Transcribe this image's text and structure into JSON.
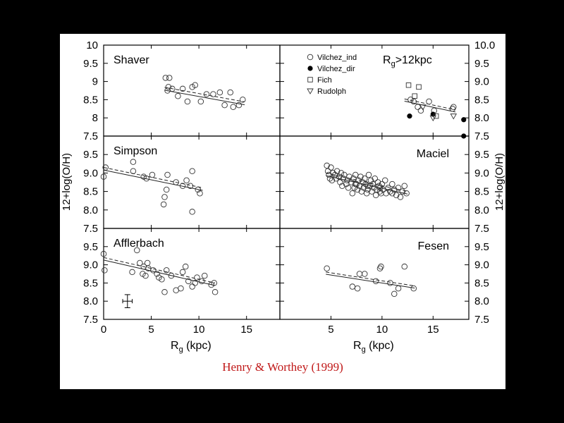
{
  "figure": {
    "citation": "Henry & Worthey (1999)",
    "citation_color": "#c01818",
    "background": "#000000",
    "panel_background": "#ffffff"
  },
  "chart_data": [
    {
      "id": "shaver",
      "type": "scatter",
      "title": "Shaver",
      "xlim": [
        0,
        18.5
      ],
      "ylim": [
        7.5,
        10
      ],
      "ytick_labels": [
        "10",
        "9.5",
        "9",
        "8.5",
        "8",
        "7.5"
      ],
      "ylabel": "12+log(O/H)",
      "xlabel": "",
      "points": [
        [
          6.5,
          9.1
        ],
        [
          6.9,
          9.1
        ],
        [
          6.7,
          8.75
        ],
        [
          6.8,
          8.85
        ],
        [
          7.2,
          8.8
        ],
        [
          7.8,
          8.6
        ],
        [
          8.3,
          8.8
        ],
        [
          8.8,
          8.45
        ],
        [
          9.3,
          8.85
        ],
        [
          9.6,
          8.9
        ],
        [
          10.2,
          8.45
        ],
        [
          10.8,
          8.65
        ],
        [
          11.5,
          8.65
        ],
        [
          12.2,
          8.7
        ],
        [
          12.7,
          8.35
        ],
        [
          13.3,
          8.7
        ],
        [
          13.6,
          8.3
        ],
        [
          14.2,
          8.35
        ],
        [
          14.6,
          8.5
        ]
      ],
      "fit_lines": [
        [
          [
            6.4,
            8.84
          ],
          [
            14.8,
            8.44
          ]
        ],
        [
          [
            6.4,
            8.76
          ],
          [
            14.8,
            8.36
          ]
        ]
      ]
    },
    {
      "id": "simpson",
      "type": "scatter",
      "title": "Simpson",
      "xlim": [
        0,
        18.5
      ],
      "ylim": [
        7.5,
        10
      ],
      "ytick_labels": [
        "9.5",
        "9.0",
        "8.5",
        "8.0",
        "7.5"
      ],
      "ylabel": "",
      "xlabel": "",
      "points": [
        [
          0,
          8.9
        ],
        [
          0.2,
          9.15
        ],
        [
          3.1,
          9.3
        ],
        [
          3.1,
          9.05
        ],
        [
          4.2,
          8.9
        ],
        [
          4.5,
          8.85
        ],
        [
          5.1,
          8.95
        ],
        [
          6.3,
          8.15
        ],
        [
          6.4,
          8.35
        ],
        [
          6.6,
          8.55
        ],
        [
          6.7,
          8.95
        ],
        [
          7.6,
          8.75
        ],
        [
          8.3,
          8.65
        ],
        [
          8.7,
          8.8
        ],
        [
          9.1,
          8.65
        ],
        [
          9.3,
          9.05
        ],
        [
          9.9,
          8.55
        ],
        [
          10.1,
          8.45
        ],
        [
          9.3,
          7.95
        ]
      ],
      "fit_lines": [
        [
          [
            0,
            9.15
          ],
          [
            10.4,
            8.6
          ]
        ],
        [
          [
            0,
            9.08
          ],
          [
            10.4,
            8.53
          ]
        ]
      ]
    },
    {
      "id": "afflerbach",
      "type": "scatter",
      "title": "Afflerbach",
      "xlim": [
        0,
        18.5
      ],
      "ylim": [
        7.5,
        10
      ],
      "ytick_labels": [
        "9.5",
        "9.0",
        "8.5",
        "8.0",
        "7.5"
      ],
      "ylabel": "",
      "xlabel": "R",
      "xlabel_sub": "g",
      "xlabel_unit": " (kpc)",
      "xtick_labels": [
        "0",
        "5",
        "10",
        "15"
      ],
      "points": [
        [
          0,
          9.3
        ],
        [
          0.1,
          8.85
        ],
        [
          3,
          8.8
        ],
        [
          3.5,
          9.4
        ],
        [
          3.8,
          9.05
        ],
        [
          4.2,
          8.95
        ],
        [
          4.1,
          8.75
        ],
        [
          4.4,
          8.7
        ],
        [
          4.6,
          9.05
        ],
        [
          4.7,
          8.9
        ],
        [
          5.2,
          8.85
        ],
        [
          5.6,
          8.75
        ],
        [
          5.8,
          8.65
        ],
        [
          6.1,
          8.6
        ],
        [
          6.4,
          8.25
        ],
        [
          6.6,
          8.85
        ],
        [
          7.1,
          8.7
        ],
        [
          7.6,
          8.3
        ],
        [
          8.1,
          8.35
        ],
        [
          8.3,
          8.8
        ],
        [
          8.6,
          8.95
        ],
        [
          8.9,
          8.55
        ],
        [
          9.3,
          8.4
        ],
        [
          9.6,
          8.5
        ],
        [
          9.8,
          8.65
        ],
        [
          10.3,
          8.55
        ],
        [
          10.6,
          8.7
        ],
        [
          11.3,
          8.45
        ],
        [
          11.6,
          8.5
        ],
        [
          11.7,
          8.25
        ]
      ],
      "error_bar": {
        "x": 2.5,
        "y": 8.0,
        "xerr": 0.5,
        "yerr": 0.18
      },
      "fit_lines": [
        [
          [
            0,
            9.2
          ],
          [
            11.7,
            8.5
          ]
        ],
        [
          [
            0,
            9.13
          ],
          [
            11.7,
            8.43
          ]
        ]
      ]
    },
    {
      "id": "outer",
      "type": "scatter",
      "title": "R",
      "title_sub": "g",
      "title_suffix": ">12kpc",
      "xlim": [
        0,
        18.5
      ],
      "ylim": [
        7.5,
        10
      ],
      "ytick_labels": [
        "10.0",
        "9.5",
        "9.0",
        "8.5",
        "8.0",
        "7.5"
      ],
      "ylabel": "12+log(O/H)",
      "xlabel": "",
      "legend": {
        "position": "top-left",
        "entries": [
          {
            "label": "Vilchez_ind",
            "marker": "open-circle"
          },
          {
            "label": "Vilchez_dir",
            "marker": "filled-circle"
          },
          {
            "label": "Fich",
            "marker": "open-square"
          },
          {
            "label": "Rudolph",
            "marker": "open-triangle-down"
          }
        ]
      },
      "series": [
        {
          "name": "Vilchez_ind",
          "marker": "open-circle",
          "points": [
            [
              12.8,
              8.5
            ],
            [
              13.1,
              8.45
            ],
            [
              13.5,
              8.3
            ],
            [
              13.8,
              8.2
            ],
            [
              14.6,
              8.45
            ],
            [
              15.1,
              8.2
            ],
            [
              16.9,
              8.25
            ],
            [
              17.0,
              8.3
            ]
          ]
        },
        {
          "name": "Vilchez_dir",
          "marker": "filled-circle",
          "points": [
            [
              12.7,
              8.05
            ],
            [
              15.0,
              8.1
            ],
            [
              18.0,
              7.95
            ],
            [
              18.0,
              7.5
            ]
          ]
        },
        {
          "name": "Fich",
          "marker": "open-square",
          "points": [
            [
              12.6,
              8.9
            ],
            [
              13.6,
              8.85
            ],
            [
              13.2,
              8.6
            ],
            [
              15.3,
              8.05
            ]
          ]
        },
        {
          "name": "Rudolph",
          "marker": "open-triangle-down",
          "points": [
            [
              15.0,
              8.0
            ],
            [
              17.0,
              8.05
            ],
            [
              14.0,
              8.3
            ]
          ]
        }
      ],
      "fit_lines": [
        [
          [
            12.2,
            8.52
          ],
          [
            17.2,
            8.22
          ]
        ],
        [
          [
            12.2,
            8.46
          ],
          [
            17.2,
            8.16
          ]
        ]
      ]
    },
    {
      "id": "maciel",
      "type": "scatter",
      "title": "Maciel",
      "xlim": [
        0,
        18.5
      ],
      "ylim": [
        7.5,
        10
      ],
      "ytick_labels": [
        "9.5",
        "9.0",
        "8.5",
        "8.0",
        "7.5"
      ],
      "ylabel": "",
      "xlabel": "",
      "points": [
        [
          4.6,
          9.2
        ],
        [
          4.7,
          9.05
        ],
        [
          4.8,
          8.95
        ],
        [
          5.0,
          9.15
        ],
        [
          5.1,
          8.8
        ],
        [
          5.2,
          9.0
        ],
        [
          5.4,
          8.95
        ],
        [
          5.5,
          8.85
        ],
        [
          5.6,
          9.05
        ],
        [
          5.8,
          8.9
        ],
        [
          5.9,
          8.75
        ],
        [
          6.0,
          9.0
        ],
        [
          6.2,
          8.85
        ],
        [
          6.3,
          8.95
        ],
        [
          6.5,
          8.7
        ],
        [
          6.6,
          8.8
        ],
        [
          6.7,
          8.6
        ],
        [
          6.8,
          8.9
        ],
        [
          7.0,
          8.75
        ],
        [
          7.1,
          8.45
        ],
        [
          7.2,
          8.85
        ],
        [
          7.3,
          8.6
        ],
        [
          7.4,
          8.95
        ],
        [
          7.5,
          8.7
        ],
        [
          7.6,
          8.55
        ],
        [
          7.7,
          8.8
        ],
        [
          7.8,
          8.65
        ],
        [
          7.9,
          8.9
        ],
        [
          8.0,
          8.5
        ],
        [
          8.1,
          8.75
        ],
        [
          8.2,
          8.6
        ],
        [
          8.3,
          8.85
        ],
        [
          8.4,
          8.7
        ],
        [
          8.5,
          8.45
        ],
        [
          8.6,
          8.55
        ],
        [
          8.7,
          8.95
        ],
        [
          8.8,
          8.65
        ],
        [
          8.9,
          8.8
        ],
        [
          9.0,
          8.5
        ],
        [
          9.1,
          8.7
        ],
        [
          9.2,
          8.6
        ],
        [
          9.3,
          8.85
        ],
        [
          9.4,
          8.4
        ],
        [
          9.5,
          8.55
        ],
        [
          9.6,
          8.75
        ],
        [
          9.7,
          8.65
        ],
        [
          9.8,
          8.5
        ],
        [
          9.9,
          8.45
        ],
        [
          10.0,
          8.7
        ],
        [
          10.1,
          8.55
        ],
        [
          10.3,
          8.8
        ],
        [
          10.4,
          8.45
        ],
        [
          10.6,
          8.6
        ],
        [
          10.8,
          8.5
        ],
        [
          11.0,
          8.7
        ],
        [
          11.2,
          8.55
        ],
        [
          11.4,
          8.4
        ],
        [
          11.6,
          8.6
        ],
        [
          11.8,
          8.35
        ],
        [
          12.0,
          8.5
        ],
        [
          12.2,
          8.65
        ],
        [
          12.4,
          8.45
        ],
        [
          4.9,
          8.85
        ],
        [
          6.1,
          8.65
        ],
        [
          7.4,
          8.7
        ],
        [
          8.6,
          8.65
        ],
        [
          9.8,
          8.6
        ],
        [
          11.0,
          8.45
        ]
      ],
      "fit_lines": [
        [
          [
            4.5,
            9.0
          ],
          [
            12.5,
            8.5
          ]
        ],
        [
          [
            4.5,
            8.93
          ],
          [
            12.5,
            8.43
          ]
        ]
      ]
    },
    {
      "id": "fesen",
      "type": "scatter",
      "title": "Fesen",
      "xlim": [
        0,
        18.5
      ],
      "ylim": [
        7.5,
        10
      ],
      "ytick_labels": [
        "9.5",
        "9.0",
        "8.5",
        "8.0",
        "7.5"
      ],
      "ylabel": "",
      "xlabel": "R",
      "xlabel_sub": "g",
      "xlabel_unit": " (kpc)",
      "xtick_labels": [
        "5",
        "10",
        "15"
      ],
      "points": [
        [
          4.6,
          8.9
        ],
        [
          7.1,
          8.4
        ],
        [
          7.6,
          8.35
        ],
        [
          7.8,
          8.75
        ],
        [
          8.3,
          8.75
        ],
        [
          9.4,
          8.55
        ],
        [
          9.8,
          8.9
        ],
        [
          9.9,
          8.95
        ],
        [
          10.8,
          8.5
        ],
        [
          11.2,
          8.2
        ],
        [
          11.6,
          8.35
        ],
        [
          12.2,
          8.95
        ],
        [
          13.1,
          8.35
        ]
      ],
      "fit_lines": [
        [
          [
            4.5,
            8.8
          ],
          [
            13.2,
            8.42
          ]
        ],
        [
          [
            4.5,
            8.74
          ],
          [
            13.2,
            8.36
          ]
        ]
      ]
    }
  ]
}
